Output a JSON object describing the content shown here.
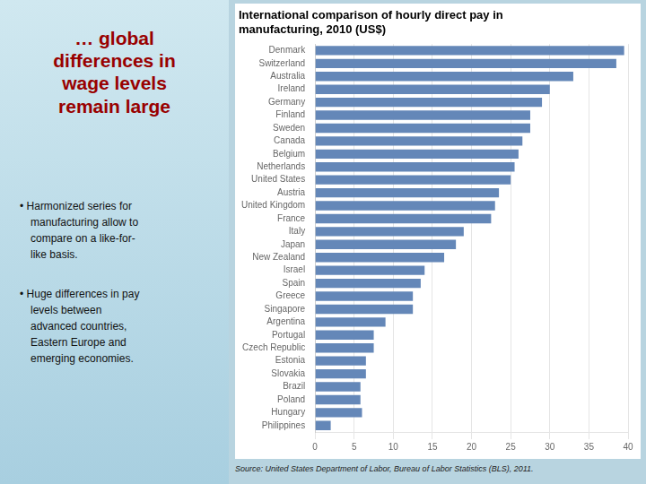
{
  "chart_data": {
    "type": "bar",
    "orientation": "horizontal",
    "title": "International comparison of hourly direct pay in\nmanufacturing, 2010 (US$)",
    "annotations": [
      "… global\ndifferences in\nwage levels\nremain large",
      "• Harmonized series for\nmanufacturing allow to\ncompare on a like-for-\nlike basis.",
      "• Huge differences in pay\nlevels between\nadvanced countries,\nEastern Europe and\nemerging economies.",
      "Source:  United States Department of Labor, Bureau of Labor Statistics (BLS), 2011."
    ],
    "categories": [
      "Denmark",
      "Switzerland",
      "Australia",
      "Ireland",
      "Germany",
      "Finland",
      "Sweden",
      "Canada",
      "Belgium",
      "Netherlands",
      "United States",
      "Austria",
      "United Kingdom",
      "France",
      "Italy",
      "Japan",
      "New Zealand",
      "Israel",
      "Spain",
      "Greece",
      "Singapore",
      "Argentina",
      "Portugal",
      "Czech Republic",
      "Estonia",
      "Slovakia",
      "Brazil",
      "Poland",
      "Hungary",
      "Philippines"
    ],
    "values": [
      39.5,
      38.5,
      33.0,
      30.0,
      29.0,
      27.5,
      27.5,
      26.5,
      26.0,
      25.5,
      25.0,
      23.5,
      23.0,
      22.5,
      19.0,
      18.0,
      16.5,
      14.0,
      13.5,
      12.5,
      12.5,
      9.0,
      7.5,
      7.5,
      6.5,
      6.5,
      5.8,
      5.8,
      6.0,
      2.0
    ],
    "color": "#6487b8",
    "xlim": [
      0,
      40
    ],
    "xticks": [
      0,
      5,
      10,
      15,
      20,
      25,
      30,
      35,
      40
    ],
    "grid": true
  }
}
